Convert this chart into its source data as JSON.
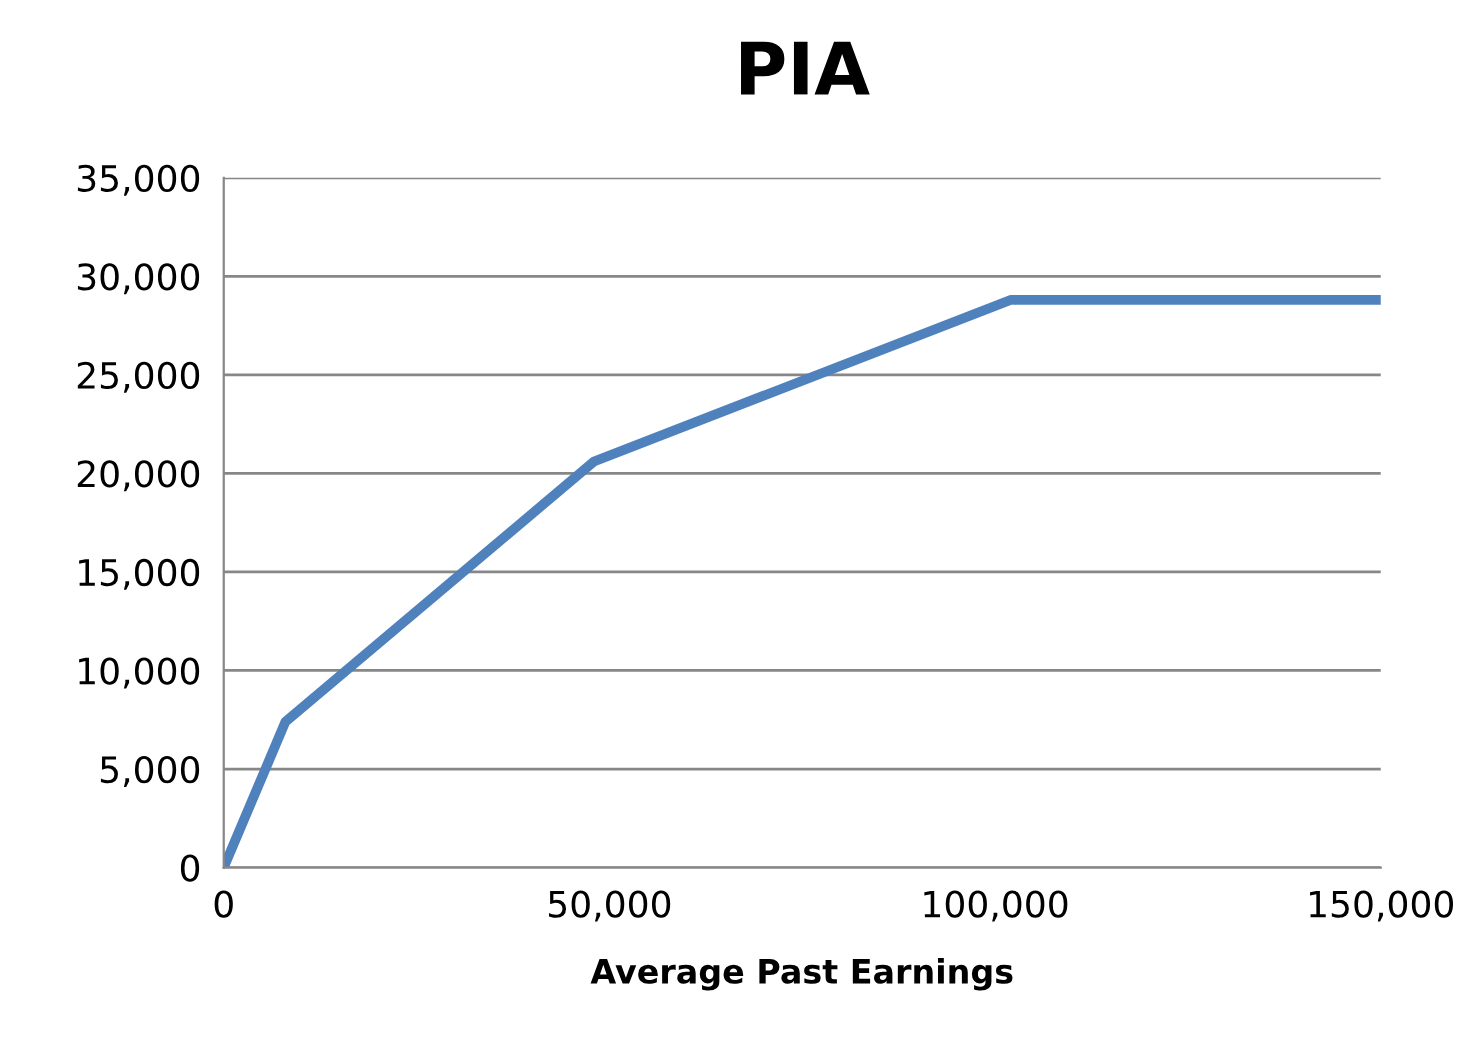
{
  "chart_data": {
    "type": "line",
    "title": "PIA",
    "xlabel": "Average Past Earnings",
    "x": [
      0,
      8000,
      48000,
      102000,
      150000
    ],
    "series": [
      {
        "color": "#4f81bd",
        "values": [
          0,
          7400,
          20600,
          28800,
          28800
        ]
      }
    ],
    "xlim": [
      0,
      150000
    ],
    "xticks": [
      {
        "value": 0,
        "label": "0"
      },
      {
        "value": 50000,
        "label": "50,000"
      },
      {
        "value": 100000,
        "label": "100,000"
      },
      {
        "value": 150000,
        "label": "150,000"
      }
    ],
    "ylim": [
      0,
      35000
    ],
    "yticks": [
      {
        "value": 0,
        "label": "0"
      },
      {
        "value": 5000,
        "label": "5,000"
      },
      {
        "value": 10000,
        "label": "10,000"
      },
      {
        "value": 15000,
        "label": "15,000"
      },
      {
        "value": 20000,
        "label": "20,000"
      },
      {
        "value": 25000,
        "label": "25,000"
      },
      {
        "value": 30000,
        "label": "30,000"
      },
      {
        "value": 35000,
        "label": "35,000"
      }
    ],
    "grid": "y",
    "legend": false,
    "marker": "none",
    "line_style": "solid"
  }
}
